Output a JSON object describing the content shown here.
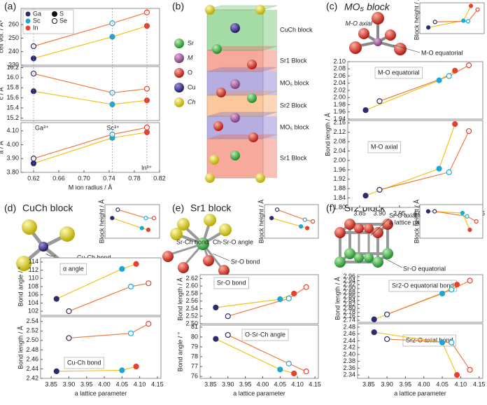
{
  "panel_labels": [
    "(a)",
    "(b)",
    "(c)",
    "(d)",
    "(e)",
    "(f)"
  ],
  "panel_titles": {
    "c": "MO₅ block",
    "d": "CuCh block",
    "e": "Sr1 block",
    "f": "Sr2 block"
  },
  "legend": {
    "metals": [
      {
        "name": "Ga",
        "color": "#2e2a6e"
      },
      {
        "name": "Sc",
        "color": "#19a9d9"
      },
      {
        "name": "In",
        "color": "#e8402f"
      }
    ],
    "chalcogens": [
      {
        "name": "S",
        "filled": true
      },
      {
        "name": "Se",
        "filled": false
      }
    ]
  },
  "structure": {
    "blocks": [
      {
        "label": "CuCh block",
        "color": "#5cbf5c"
      },
      {
        "label": "Sr1 Block",
        "color": "#f0624a"
      },
      {
        "label": "MO₅ block",
        "color": "#7a6ac8"
      },
      {
        "label": "Sr2 Block",
        "color": "#f59a4a"
      },
      {
        "label": "MO₅ block",
        "color": "#7a6ac8"
      },
      {
        "label": "Sr1 Block",
        "color": "#f0624a"
      }
    ],
    "atoms": [
      {
        "name": "Sr",
        "color": "#2fa23a"
      },
      {
        "name": "M",
        "color": "#a0529a"
      },
      {
        "name": "O",
        "color": "#d8281e"
      },
      {
        "name": "Cu",
        "color": "#3a2a8a"
      },
      {
        "name": "Ch",
        "color": "#e0d21a"
      }
    ]
  },
  "diagrams": {
    "c": {
      "axial": "M-O axial",
      "equatorial": "M-O equatorial"
    },
    "d": {
      "angle": "α",
      "bond": "Cu-Ch bond"
    },
    "e": {
      "srch": "Sr-Ch bond",
      "angle": "Ch-Sr-O angle",
      "sro": "Sr-O bond"
    },
    "f": {
      "axial": "Sr-O axial",
      "equatorial": "Sr-O equatorial"
    }
  },
  "chart_data": [
    {
      "type": "line",
      "ylabel": "cell vol. / Å³",
      "xlim": [
        0.6,
        0.82
      ],
      "ylim": [
        230,
        272
      ],
      "yticks": [
        230,
        240,
        250,
        260
      ],
      "series": [
        {
          "color": "#f2c21a",
          "filled": true,
          "x": [
            0.62,
            0.745,
            0.8
          ],
          "values": [
            235,
            251,
            259
          ]
        },
        {
          "color": "#ef7a3c",
          "filled": false,
          "x": [
            0.62,
            0.745,
            0.8
          ],
          "values": [
            244,
            261,
            269
          ]
        }
      ]
    },
    {
      "type": "line",
      "ylabel": "c / Å",
      "xlim": [
        0.6,
        0.82
      ],
      "ylim": [
        15.15,
        16.22
      ],
      "yticks": [
        15.2,
        15.4,
        15.6,
        15.8,
        {
          "value": 16,
          "label": "16.0"
        },
        16.2
      ],
      "series": [
        {
          "color": "#f2c21a",
          "filled": true,
          "x": [
            0.62,
            0.745,
            0.8
          ],
          "values": [
            15.73,
            15.47,
            15.55
          ]
        },
        {
          "color": "#ef7a3c",
          "filled": false,
          "x": [
            0.62,
            0.745,
            0.8
          ],
          "values": [
            16.08,
            15.7,
            15.78
          ]
        }
      ]
    },
    {
      "type": "line",
      "ylabel": "a / Å",
      "xlabel": "M ion radius / Å",
      "xlim": [
        0.6,
        0.82
      ],
      "ylim": [
        3.8,
        4.16
      ],
      "yticks": [
        {
          "value": 3.8,
          "label": "3.80"
        },
        {
          "value": 3.9,
          "label": "3.90"
        },
        {
          "value": 4,
          "label": "4.00"
        },
        {
          "value": 4.1,
          "label": "4.10"
        }
      ],
      "xticks": [
        0.62,
        0.66,
        {
          "value": 0.7,
          "label": "0.70"
        },
        0.74,
        0.78,
        0.82
      ],
      "ion_radii": [
        {
          "label": "Ga³⁺",
          "value": 0.62
        },
        {
          "label": "Sc³⁺",
          "value": 0.745
        },
        {
          "label": "In³⁺",
          "value": 0.8
        }
      ],
      "series": [
        {
          "color": "#f2c21a",
          "filled": true,
          "x": [
            0.62,
            0.745,
            0.8
          ],
          "values": [
            3.865,
            4.05,
            4.09
          ]
        },
        {
          "color": "#ef7a3c",
          "filled": false,
          "x": [
            0.62,
            0.745,
            0.8
          ],
          "values": [
            3.9,
            4.075,
            4.125
          ]
        }
      ]
    },
    {
      "type": "line",
      "ylabel": "Block height / Å",
      "xlim": [
        3.82,
        4.16
      ],
      "ylim": [
        0,
        1
      ],
      "series": [
        {
          "color": "#f2c21a",
          "filled": true,
          "x": [
            3.865,
            4.05,
            4.09
          ],
          "values": [
            0.2,
            0.42,
            0.9
          ]
        },
        {
          "color": "#ef7a3c",
          "filled": false,
          "x": [
            3.9,
            4.075,
            4.125
          ],
          "values": [
            0.38,
            0.4,
            0.78
          ]
        }
      ]
    },
    {
      "type": "line",
      "annotation": "M-O equatorial",
      "xlim": [
        3.82,
        4.16
      ],
      "ylim": [
        1.94,
        2.1
      ],
      "yticks": [
        1.94,
        1.96,
        1.98,
        {
          "value": 2,
          "label": "2.00"
        },
        2.02,
        2.04,
        2.06,
        2.08,
        {
          "value": 2.1,
          "label": "2.10"
        }
      ],
      "series": [
        {
          "color": "#f2c21a",
          "filled": true,
          "x": [
            3.865,
            4.05,
            4.09
          ],
          "values": [
            1.965,
            2.048,
            2.075
          ]
        },
        {
          "color": "#ef7a3c",
          "filled": false,
          "x": [
            3.9,
            4.075,
            4.125
          ],
          "values": [
            1.99,
            2.06,
            2.09
          ]
        }
      ]
    },
    {
      "type": "line",
      "annotation": "M-O axial",
      "ylabel": "Bond length / Å",
      "xlabel": "a lattice parameter",
      "xlim": [
        3.82,
        4.16
      ],
      "ylim": [
        1.8,
        2.17
      ],
      "yticks": [
        {
          "value": 1.8,
          "label": "1.80"
        },
        1.84,
        1.88,
        1.92,
        1.96,
        {
          "value": 2,
          "label": "2.00"
        },
        2.04,
        2.08,
        2.12,
        2.16
      ],
      "xticks": [
        3.85,
        {
          "value": 3.9,
          "label": "3.90"
        },
        3.95,
        {
          "value": 4,
          "label": "4.00"
        },
        4.05,
        {
          "value": 4.1,
          "label": "4.10"
        },
        4.15
      ],
      "series": [
        {
          "color": "#f2c21a",
          "filled": true,
          "x": [
            3.865,
            4.05,
            4.09
          ],
          "values": [
            1.85,
            1.965,
            2.155
          ]
        },
        {
          "color": "#ef7a3c",
          "filled": false,
          "x": [
            3.9,
            4.075,
            4.125
          ],
          "values": [
            1.875,
            1.95,
            2.125
          ]
        }
      ]
    },
    {
      "type": "line",
      "ylabel": "Block height / Å",
      "xlim": [
        3.82,
        4.16
      ],
      "ylim": [
        0,
        1
      ],
      "series": [
        {
          "color": "#f2c21a",
          "filled": true,
          "x": [
            3.865,
            4.05,
            4.09
          ],
          "values": [
            0.6,
            0.3,
            0.25
          ]
        },
        {
          "color": "#ef7a3c",
          "filled": false,
          "x": [
            3.9,
            4.075,
            4.125
          ],
          "values": [
            0.85,
            0.6,
            0.6
          ]
        }
      ]
    },
    {
      "type": "line",
      "annotation": "α angle",
      "ylabel": "Bond angle / °",
      "xlim": [
        3.82,
        4.16
      ],
      "ylim": [
        101,
        115
      ],
      "yticks": [
        102,
        104,
        106,
        108,
        110,
        112,
        114
      ],
      "series": [
        {
          "color": "#f2c21a",
          "filled": true,
          "x": [
            3.865,
            4.05,
            4.09
          ],
          "values": [
            105,
            112.3,
            113.5
          ]
        },
        {
          "color": "#ef7a3c",
          "filled": false,
          "x": [
            3.9,
            4.075,
            4.125
          ],
          "values": [
            102,
            108,
            108.8
          ]
        }
      ]
    },
    {
      "type": "line",
      "annotation": "Cu-Ch bond",
      "ylabel": "Bond length / Å",
      "xlabel": "a lattice parameter",
      "xlim": [
        3.82,
        4.16
      ],
      "ylim": [
        2.42,
        2.55
      ],
      "yticks": [
        2.42,
        2.44,
        2.46,
        2.48,
        {
          "value": 2.5,
          "label": "2.50"
        },
        2.52,
        2.54
      ],
      "xticks": [
        3.85,
        {
          "value": 3.9,
          "label": "3.90"
        },
        3.95,
        {
          "value": 4,
          "label": "4.00"
        },
        4.05,
        {
          "value": 4.1,
          "label": "4.10"
        },
        4.15
      ],
      "series": [
        {
          "color": "#f2c21a",
          "filled": true,
          "x": [
            3.865,
            4.05,
            4.09
          ],
          "values": [
            2.435,
            2.437,
            2.445
          ]
        },
        {
          "color": "#ef7a3c",
          "filled": false,
          "x": [
            3.9,
            4.075,
            4.125
          ],
          "values": [
            2.505,
            2.515,
            2.535
          ]
        }
      ]
    },
    {
      "type": "line",
      "ylabel": "Block height / Å",
      "xlim": [
        3.82,
        4.16
      ],
      "ylim": [
        0,
        1
      ],
      "series": [
        {
          "color": "#f2c21a",
          "filled": true,
          "x": [
            3.865,
            4.05,
            4.09
          ],
          "values": [
            0.6,
            0.35,
            0.3
          ]
        },
        {
          "color": "#ef7a3c",
          "filled": false,
          "x": [
            3.9,
            4.075,
            4.125
          ],
          "values": [
            0.85,
            0.55,
            0.5
          ]
        }
      ]
    },
    {
      "type": "line",
      "annotation": "Sr-O bond",
      "ylabel": "Bond length / Å",
      "xlim": [
        3.82,
        4.16
      ],
      "ylim": [
        2.5,
        2.63
      ],
      "yticks": [
        {
          "value": 2.5,
          "label": "2.50"
        },
        2.52,
        2.54,
        2.56,
        2.58,
        {
          "value": 2.6,
          "label": "2.60"
        },
        2.62
      ],
      "series": [
        {
          "color": "#f2c21a",
          "filled": true,
          "x": [
            3.865,
            4.05,
            4.09
          ],
          "values": [
            2.543,
            2.565,
            2.58
          ]
        },
        {
          "color": "#ef7a3c",
          "filled": false,
          "x": [
            3.9,
            4.075,
            4.125
          ],
          "values": [
            2.52,
            2.567,
            2.597
          ]
        }
      ]
    },
    {
      "type": "line",
      "annotation": "O-Sr-Ch angle",
      "ylabel": "Bond angle / °",
      "xlabel": "a lattice parameter",
      "xlim": [
        3.82,
        4.16
      ],
      "ylim": [
        75.8,
        81.2
      ],
      "yticks": [
        76,
        77,
        78,
        79,
        80,
        81
      ],
      "xticks": [
        3.85,
        {
          "value": 3.9,
          "label": "3.90"
        },
        3.95,
        {
          "value": 4,
          "label": "4.00"
        },
        4.05,
        {
          "value": 4.1,
          "label": "4.10"
        },
        4.15
      ],
      "series": [
        {
          "color": "#f2c21a",
          "filled": true,
          "x": [
            3.865,
            4.05,
            4.09
          ],
          "values": [
            79.8,
            76.7,
            76.3
          ]
        },
        {
          "color": "#ef7a3c",
          "filled": false,
          "x": [
            3.9,
            4.075,
            4.125
          ],
          "values": [
            80.2,
            77.3,
            76.5
          ]
        }
      ]
    },
    {
      "type": "line",
      "ylabel": "Block height / Å",
      "xlim": [
        3.82,
        4.16
      ],
      "ylim": [
        0,
        1
      ],
      "series": [
        {
          "color": "#f2c21a",
          "filled": true,
          "x": [
            3.865,
            4.05,
            4.09
          ],
          "values": [
            0.8,
            0.75,
            0.25
          ]
        },
        {
          "color": "#ef7a3c",
          "filled": false,
          "x": [
            3.9,
            4.075,
            4.125
          ],
          "values": [
            0.8,
            0.65,
            0.5
          ]
        }
      ]
    },
    {
      "type": "line",
      "annotation": "Sr2-O equatorial bond",
      "xlim": [
        3.82,
        4.16
      ],
      "ylim": [
        2.73,
        2.97
      ],
      "yticks": [
        2.74,
        2.76,
        2.78,
        {
          "value": 2.8,
          "label": "2.80"
        },
        2.82,
        2.84,
        2.86,
        2.88,
        {
          "value": 2.9,
          "label": "2.90"
        },
        2.92,
        2.94,
        2.96
      ],
      "series": [
        {
          "color": "#f2c21a",
          "filled": true,
          "x": [
            3.865,
            4.05,
            4.09
          ],
          "values": [
            2.745,
            2.875,
            2.92
          ]
        },
        {
          "color": "#ef7a3c",
          "filled": false,
          "x": [
            3.9,
            4.075,
            4.125
          ],
          "values": [
            2.77,
            2.895,
            2.94
          ]
        }
      ]
    },
    {
      "type": "line",
      "annotation": "Sr2-O axial bond",
      "ylabel": "Bond length / Å",
      "xlabel": "a lattice parameter",
      "xlim": [
        3.82,
        4.16
      ],
      "ylim": [
        2.33,
        2.49
      ],
      "yticks": [
        2.34,
        2.36,
        2.38,
        {
          "value": 2.4,
          "label": "2.40"
        },
        2.42,
        2.44,
        2.46,
        2.48
      ],
      "xticks": [
        3.85,
        {
          "value": 3.9,
          "label": "3.90"
        },
        3.95,
        {
          "value": 4,
          "label": "4.00"
        },
        4.05,
        {
          "value": 4.1,
          "label": "4.10"
        },
        4.15
      ],
      "series": [
        {
          "color": "#f2c21a",
          "filled": true,
          "x": [
            3.865,
            4.05,
            4.09
          ],
          "values": [
            2.465,
            2.435,
            2.34
          ]
        },
        {
          "color": "#ef7a3c",
          "filled": false,
          "x": [
            3.9,
            4.075,
            4.125
          ],
          "values": [
            2.445,
            2.435,
            2.355
          ]
        }
      ]
    }
  ]
}
